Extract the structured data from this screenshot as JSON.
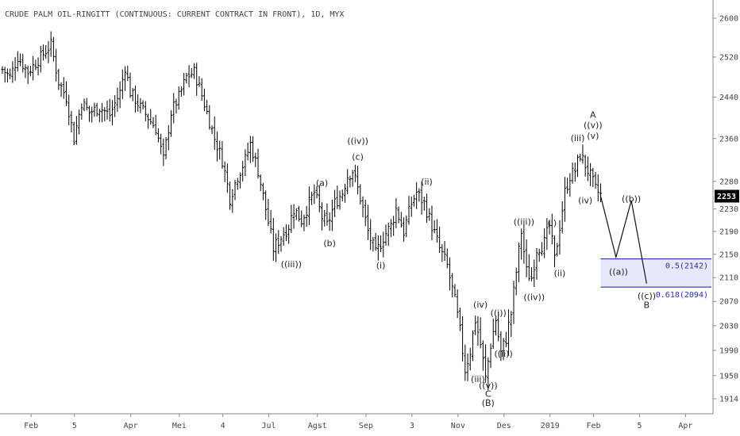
{
  "title": "CRUDE PALM OIL-RINGITT (CONTINUOUS: CURRENT CONTRACT IN FRONT), 1D, MYX",
  "colors": {
    "bars": "#000000",
    "zone_fill": "#e8e8fb",
    "zone_line": "#1a1aa0",
    "fib_text": "#2a2ab8",
    "last_badge": "#000000"
  },
  "chart_data": {
    "type": "bar",
    "ylim": [
      1890,
      2620
    ],
    "grid": false,
    "y_ticks": [
      2600,
      2520,
      2440,
      2360,
      2280,
      2230,
      2190,
      2150,
      2110,
      2070,
      2030,
      1990,
      1950,
      1914
    ],
    "x_ticks": [
      {
        "label": "Feb",
        "t": 5
      },
      {
        "label": "5",
        "t": 22
      },
      {
        "label": "Apr",
        "t": 44
      },
      {
        "label": "Mei",
        "t": 63
      },
      {
        "label": "4",
        "t": 80
      },
      {
        "label": "Jul",
        "t": 98
      },
      {
        "label": "Agst",
        "t": 117
      },
      {
        "label": "Sep",
        "t": 136
      },
      {
        "label": "3",
        "t": 154
      },
      {
        "label": "Nov",
        "t": 172
      },
      {
        "label": "Des",
        "t": 190
      },
      {
        "label": "2019",
        "t": 208
      },
      {
        "label": "Feb",
        "t": 225
      },
      {
        "label": "5",
        "t": 243
      },
      {
        "label": "Apr",
        "t": 261
      }
    ],
    "last_price": "2253",
    "price_path": [
      [
        0,
        2495
      ],
      [
        3,
        2480
      ],
      [
        6,
        2520
      ],
      [
        10,
        2490
      ],
      [
        15,
        2520
      ],
      [
        19,
        2545
      ],
      [
        22,
        2470
      ],
      [
        25,
        2440
      ],
      [
        28,
        2360
      ],
      [
        31,
        2430
      ],
      [
        34,
        2410
      ],
      [
        38,
        2420
      ],
      [
        42,
        2405
      ],
      [
        46,
        2450
      ],
      [
        48,
        2500
      ],
      [
        50,
        2450
      ],
      [
        54,
        2420
      ],
      [
        57,
        2400
      ],
      [
        60,
        2380
      ],
      [
        63,
        2320
      ],
      [
        66,
        2410
      ],
      [
        69,
        2440
      ],
      [
        72,
        2480
      ],
      [
        75,
        2490
      ],
      [
        77,
        2460
      ],
      [
        80,
        2410
      ],
      [
        83,
        2360
      ],
      [
        86,
        2320
      ],
      [
        89,
        2250
      ],
      [
        92,
        2290
      ],
      [
        95,
        2320
      ],
      [
        97,
        2350
      ],
      [
        100,
        2300
      ],
      [
        103,
        2230
      ],
      [
        106,
        2160
      ],
      [
        109,
        2180
      ],
      [
        112,
        2200
      ],
      [
        114,
        2230
      ],
      [
        117,
        2210
      ],
      [
        120,
        2240
      ],
      [
        122,
        2260
      ],
      [
        125,
        2215
      ],
      [
        127,
        2200
      ],
      [
        130,
        2240
      ],
      [
        133,
        2260
      ],
      [
        135,
        2290
      ],
      [
        137,
        2300
      ],
      [
        140,
        2250
      ],
      [
        143,
        2190
      ],
      [
        146,
        2150
      ],
      [
        149,
        2180
      ],
      [
        152,
        2200
      ],
      [
        154,
        2230
      ],
      [
        157,
        2190
      ],
      [
        160,
        2240
      ],
      [
        162,
        2260
      ],
      [
        165,
        2240
      ],
      [
        168,
        2200
      ],
      [
        171,
        2160
      ],
      [
        174,
        2130
      ],
      [
        177,
        2070
      ],
      [
        179,
        2020
      ],
      [
        181,
        1960
      ],
      [
        183,
        1990
      ],
      [
        185,
        2040
      ],
      [
        187,
        2000
      ],
      [
        189,
        1945
      ],
      [
        191,
        2000
      ],
      [
        193,
        2040
      ],
      [
        195,
        1985
      ],
      [
        197,
        2010
      ],
      [
        199,
        2050
      ],
      [
        201,
        2120
      ],
      [
        203,
        2190
      ],
      [
        205,
        2120
      ],
      [
        207,
        2110
      ],
      [
        209,
        2160
      ],
      [
        212,
        2170
      ],
      [
        214,
        2200
      ],
      [
        216,
        2140
      ],
      [
        218,
        2200
      ],
      [
        220,
        2260
      ],
      [
        222,
        2290
      ],
      [
        224,
        2300
      ],
      [
        226,
        2330
      ],
      [
        228,
        2310
      ],
      [
        230,
        2290
      ],
      [
        232,
        2265
      ],
      [
        234,
        2255
      ]
    ],
    "projection": [
      [
        234,
        2253
      ],
      [
        240,
        2145
      ],
      [
        246,
        2245
      ],
      [
        252,
        2100
      ]
    ],
    "fib_zone": {
      "start_t": 234,
      "top": 2142,
      "bottom": 2094,
      "top_label": "0.5(2142)",
      "bottom_label": "0.618(2094)"
    },
    "wave_labels": [
      {
        "text": "((iii))",
        "t": 113,
        "price": 2128
      },
      {
        "text": "(a)",
        "t": 125,
        "price": 2272
      },
      {
        "text": "(b)",
        "t": 128,
        "price": 2164
      },
      {
        "text": "((iv))",
        "t": 139,
        "price": 2350
      },
      {
        "text": "(c)",
        "t": 139,
        "price": 2320
      },
      {
        "text": "(i)",
        "t": 148,
        "price": 2126
      },
      {
        "text": "(ii)",
        "t": 166,
        "price": 2274
      },
      {
        "text": "(iv)",
        "t": 187,
        "price": 2060
      },
      {
        "text": "((i))",
        "t": 194,
        "price": 2046
      },
      {
        "text": "((ii))",
        "t": 196,
        "price": 1980
      },
      {
        "text": "(iii)",
        "t": 186,
        "price": 1940
      },
      {
        "text": "((v))",
        "t": 190,
        "price": 1930
      },
      {
        "text": "C",
        "t": 190,
        "price": 1917
      },
      {
        "text": "(B)",
        "t": 190,
        "price": 1903
      },
      {
        "text": "((iii))",
        "t": 204,
        "price": 2202
      },
      {
        "text": "((iv))",
        "t": 208,
        "price": 2072
      },
      {
        "text": "(i)",
        "t": 215,
        "price": 2200
      },
      {
        "text": "(ii)",
        "t": 218,
        "price": 2112
      },
      {
        "text": "(iii)",
        "t": 225,
        "price": 2355
      },
      {
        "text": "(iv)",
        "t": 228,
        "price": 2240
      },
      {
        "text": "A",
        "t": 231,
        "price": 2400
      },
      {
        "text": "((v))",
        "t": 231,
        "price": 2380
      },
      {
        "text": "(v)",
        "t": 231,
        "price": 2360
      },
      {
        "text": "((a))",
        "t": 241,
        "price": 2115
      },
      {
        "text": "((b))",
        "t": 246,
        "price": 2243
      },
      {
        "text": "((c))",
        "t": 252,
        "price": 2074
      },
      {
        "text": "B",
        "t": 252,
        "price": 2059
      }
    ]
  }
}
